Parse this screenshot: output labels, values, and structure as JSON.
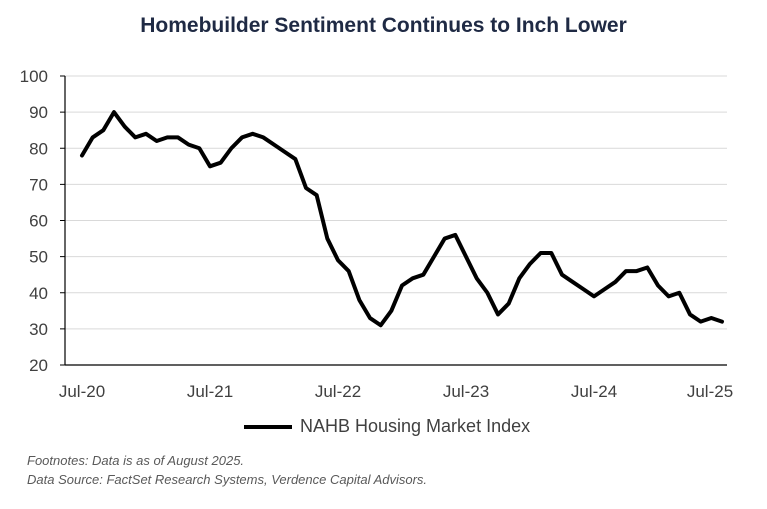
{
  "chart_data": {
    "type": "line",
    "title": "Homebuilder Sentiment Continues to Inch Lower",
    "xlabel": "",
    "ylabel": "",
    "ylim": [
      20,
      100
    ],
    "yticks": [
      20,
      30,
      40,
      50,
      60,
      70,
      80,
      90,
      100
    ],
    "xtick_labels": [
      "Jul-20",
      "Jul-21",
      "Jul-22",
      "Jul-23",
      "Jul-24",
      "Jul-25"
    ],
    "x_start": "Jul-20",
    "x_end": "Jul-25",
    "grid": true,
    "legend_position": "bottom-center",
    "series": [
      {
        "name": "NAHB Housing Market Index",
        "color": "#000000",
        "values": [
          78,
          83,
          85,
          90,
          86,
          83,
          84,
          82,
          83,
          83,
          81,
          80,
          75,
          76,
          80,
          83,
          84,
          83,
          81,
          79,
          77,
          69,
          67,
          55,
          49,
          46,
          38,
          33,
          31,
          35,
          42,
          44,
          45,
          50,
          55,
          56,
          50,
          44,
          40,
          34,
          37,
          44,
          48,
          51,
          51,
          45,
          43,
          41,
          39,
          41,
          43,
          46,
          46,
          47,
          42,
          39,
          40,
          34,
          32,
          33,
          32
        ]
      }
    ]
  },
  "footnotes": {
    "line1": "Footnotes: Data is as of August 2025.",
    "line2": "Data Source: FactSet Research Systems, Verdence Capital Advisors."
  }
}
